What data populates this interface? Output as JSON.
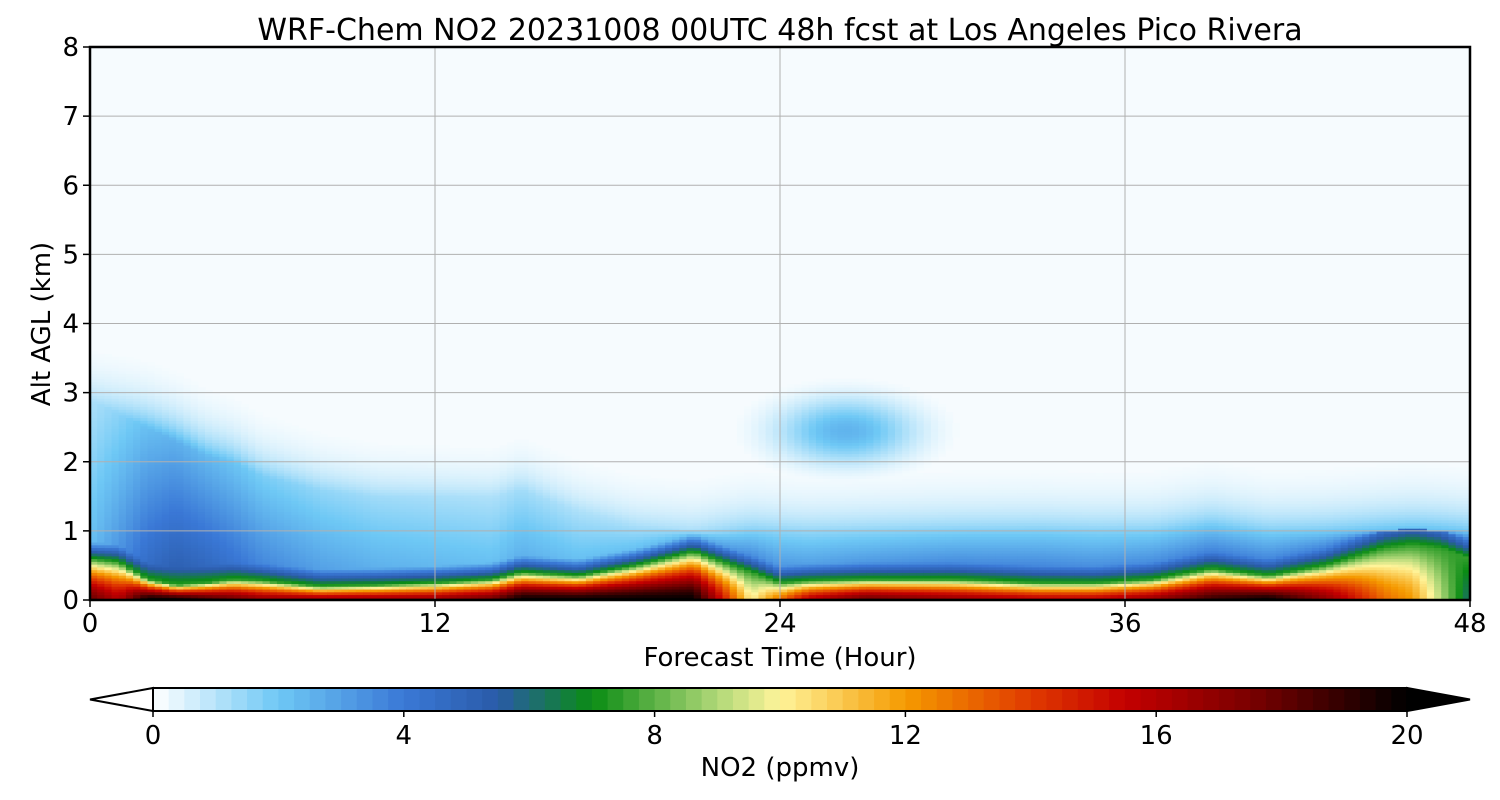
{
  "chart_data": {
    "type": "heatmap",
    "title": "WRF-Chem NO2  20231008 00UTC 48h fcst at Los Angeles Pico Rivera",
    "xlabel": "Forecast Time (Hour)",
    "ylabel": "Alt AGL (km)",
    "xlim": [
      0,
      48
    ],
    "ylim": [
      0,
      8
    ],
    "x_ticks": [
      0,
      12,
      24,
      36,
      48
    ],
    "y_ticks": [
      0,
      1,
      2,
      3,
      4,
      5,
      6,
      7,
      8
    ],
    "grid": true,
    "colorbar": {
      "label": "NO2  (ppmv)",
      "range": [
        0,
        20
      ],
      "ticks": [
        0,
        4,
        8,
        12,
        16,
        20
      ],
      "extend": "both",
      "stops": [
        {
          "value": 0,
          "color": "#ffffff"
        },
        {
          "value": 2,
          "color": "#6ec8f5"
        },
        {
          "value": 4,
          "color": "#3a78d6"
        },
        {
          "value": 5.5,
          "color": "#2a5aa8"
        },
        {
          "value": 7,
          "color": "#0a8c14"
        },
        {
          "value": 9,
          "color": "#b0d878"
        },
        {
          "value": 10,
          "color": "#fff49a"
        },
        {
          "value": 12,
          "color": "#f59a00"
        },
        {
          "value": 14,
          "color": "#e03a00"
        },
        {
          "value": 15.5,
          "color": "#c40000"
        },
        {
          "value": 17.5,
          "color": "#7a0000"
        },
        {
          "value": 20,
          "color": "#000000"
        }
      ]
    },
    "profile": {
      "hours": [
        0,
        1,
        2,
        3,
        4,
        5,
        6,
        8,
        10,
        12,
        14,
        15,
        17,
        19,
        21,
        23,
        24,
        25,
        27,
        30,
        33,
        35,
        37,
        39,
        41,
        43,
        45,
        46,
        47,
        48
      ],
      "no2_surface": [
        18,
        16,
        20,
        20,
        19,
        18,
        17,
        17,
        17,
        17,
        18,
        20,
        20,
        20,
        20,
        10,
        13,
        16,
        18,
        17,
        16,
        16,
        17,
        19,
        20,
        17,
        13,
        12,
        9,
        6
      ],
      "layer_top_km": [
        0.6,
        0.55,
        0.3,
        0.22,
        0.25,
        0.3,
        0.28,
        0.2,
        0.22,
        0.25,
        0.3,
        0.4,
        0.35,
        0.5,
        0.7,
        0.4,
        0.25,
        0.28,
        0.3,
        0.3,
        0.25,
        0.25,
        0.3,
        0.45,
        0.35,
        0.5,
        0.75,
        0.8,
        0.75,
        0.6
      ],
      "aloft_no2": [
        2.2,
        3.2,
        4.5,
        5.2,
        4.8,
        4.2,
        3.6,
        3.0,
        2.6,
        2.4,
        2.2,
        2.6,
        2.2,
        2.2,
        2.4,
        3.5,
        3.2,
        3.0,
        3.2,
        3.5,
        3.6,
        3.4,
        3.5,
        3.8,
        3.6,
        3.8,
        4.5,
        4.8,
        4.5,
        4.0
      ],
      "aloft_top_km": [
        2.9,
        2.7,
        2.5,
        2.3,
        2.1,
        2.0,
        1.8,
        1.6,
        1.5,
        1.5,
        1.5,
        1.6,
        1.3,
        1.1,
        1.0,
        1.0,
        1.0,
        1.0,
        1.0,
        1.0,
        1.0,
        1.0,
        1.0,
        1.1,
        1.0,
        1.0,
        1.0,
        1.0,
        1.0,
        1.0
      ]
    },
    "plumes": [
      {
        "hour": 26.3,
        "alt_km": 2.45,
        "no2": 2.5,
        "width_h": 2.3,
        "height_km": 0.45
      }
    ]
  }
}
